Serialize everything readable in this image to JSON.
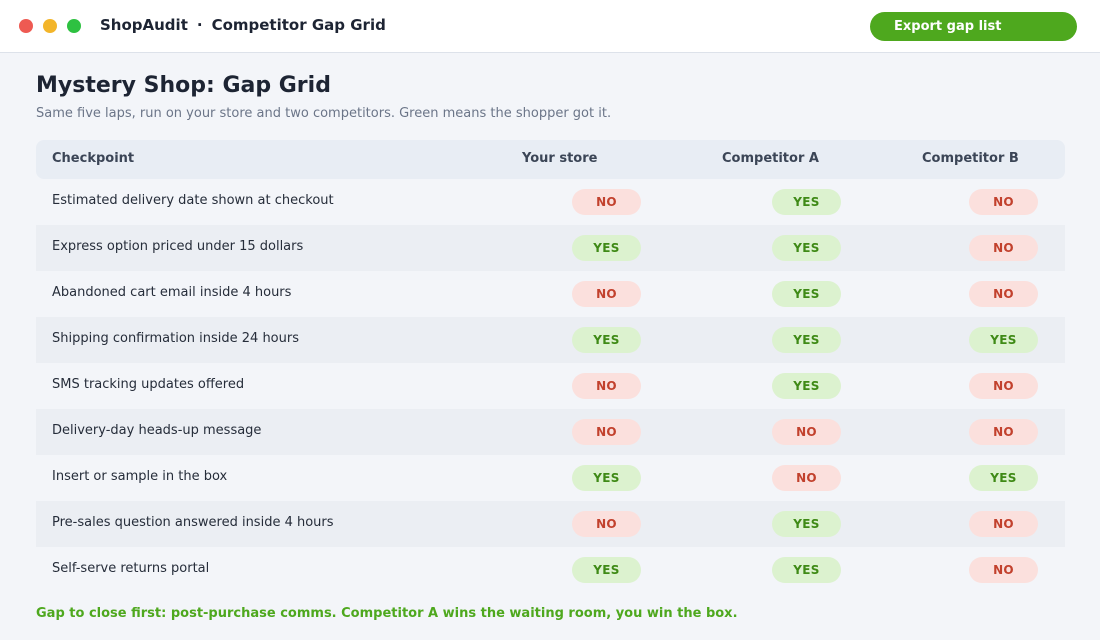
{
  "window": {
    "app_name": "ShopAudit",
    "separator": "·",
    "view_name": "Competitor Gap Grid"
  },
  "toolbar": {
    "export_label": "Export gap list"
  },
  "page": {
    "title": "Mystery Shop: Gap Grid",
    "subtitle": "Same five laps, run on your store and two competitors. Green means the shopper got it."
  },
  "colors": {
    "yes_accent": "#4ea81e",
    "no_accent": "#c2412d"
  },
  "grid": {
    "columns": [
      "Checkpoint",
      "Your store",
      "Competitor A",
      "Competitor B"
    ],
    "rows": [
      {
        "checkpoint": "Estimated delivery date shown at checkout",
        "your_store": "NO",
        "competitor_a": "YES",
        "competitor_b": "NO"
      },
      {
        "checkpoint": "Express option priced under 15 dollars",
        "your_store": "YES",
        "competitor_a": "YES",
        "competitor_b": "NO"
      },
      {
        "checkpoint": "Abandoned cart email inside 4 hours",
        "your_store": "NO",
        "competitor_a": "YES",
        "competitor_b": "NO"
      },
      {
        "checkpoint": "Shipping confirmation inside 24 hours",
        "your_store": "YES",
        "competitor_a": "YES",
        "competitor_b": "YES"
      },
      {
        "checkpoint": "SMS tracking updates offered",
        "your_store": "NO",
        "competitor_a": "YES",
        "competitor_b": "NO"
      },
      {
        "checkpoint": "Delivery-day heads-up message",
        "your_store": "NO",
        "competitor_a": "NO",
        "competitor_b": "NO"
      },
      {
        "checkpoint": "Insert or sample in the box",
        "your_store": "YES",
        "competitor_a": "NO",
        "competitor_b": "YES"
      },
      {
        "checkpoint": "Pre-sales question answered inside 4 hours",
        "your_store": "NO",
        "competitor_a": "YES",
        "competitor_b": "NO"
      },
      {
        "checkpoint": "Self-serve returns portal",
        "your_store": "YES",
        "competitor_a": "YES",
        "competitor_b": "NO"
      }
    ]
  },
  "footer": {
    "note": "Gap to close first: post-purchase comms. Competitor A wins the waiting room, you win the box."
  }
}
